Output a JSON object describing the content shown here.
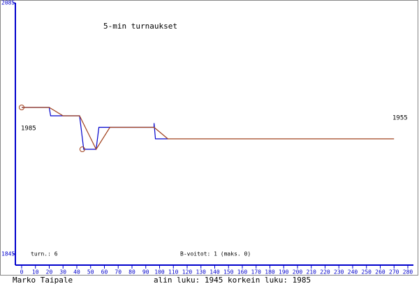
{
  "chart_data": {
    "type": "line",
    "title": "5-min turnaukset",
    "xlim": [
      0,
      280
    ],
    "xticks": [
      0,
      10,
      20,
      30,
      40,
      50,
      60,
      70,
      80,
      90,
      100,
      110,
      120,
      130,
      140,
      150,
      160,
      170,
      180,
      190,
      200,
      210,
      220,
      230,
      240,
      250,
      260,
      270,
      280
    ],
    "ylim": [
      1845,
      2085
    ],
    "yticks": [
      1845,
      2085
    ],
    "series": [
      {
        "color": "#0000cc",
        "x": [
          0,
          20,
          21,
          42,
          45,
          54,
          56,
          96,
          96,
          97,
          106
        ],
        "values": [
          1985,
          1985,
          1977,
          1977,
          1945,
          1945,
          1966,
          1966,
          1970,
          1955,
          1955
        ]
      },
      {
        "color": "#a0401c",
        "x": [
          0,
          20,
          30,
          42,
          54,
          64,
          96,
          106,
          270
        ],
        "values": [
          1985,
          1985,
          1977,
          1977,
          1945,
          1966,
          1966,
          1955,
          1955
        ]
      }
    ],
    "highlights": {
      "color": "#a0401c",
      "x": [
        0,
        44
      ],
      "values": [
        1985,
        1945
      ]
    },
    "start_label": "1985",
    "end_label": "1955",
    "tournaments": "turn.: 6",
    "b_wins": "B-voitot: 1 (maks. 0)",
    "player": "Marko Taipale",
    "range_text": "alin luku: 1945  korkein luku: 1985"
  }
}
